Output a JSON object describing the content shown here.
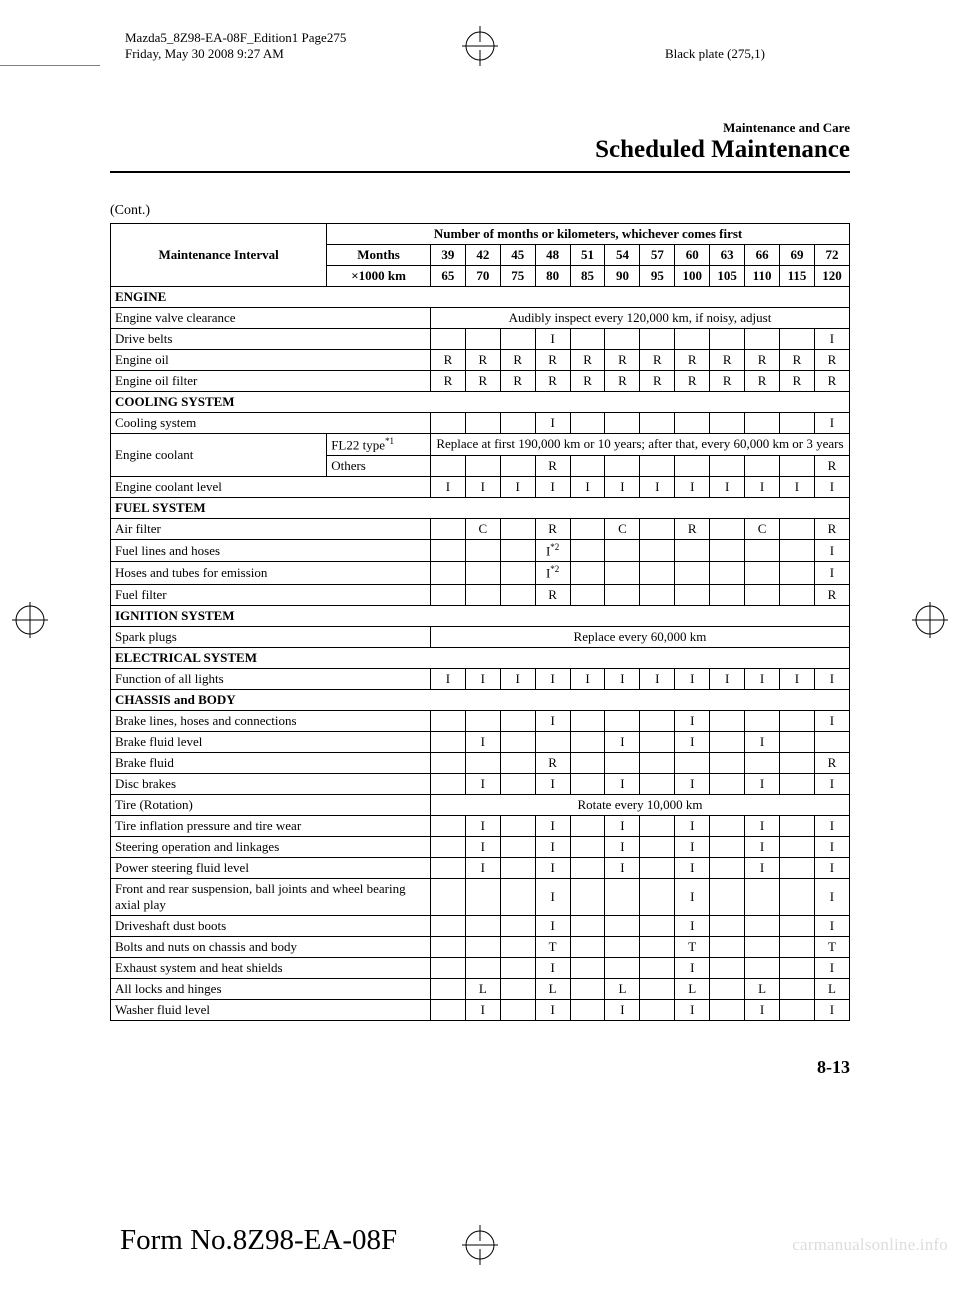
{
  "header": {
    "doc_line1": "Mazda5_8Z98-EA-08F_Edition1 Page275",
    "doc_line2": "Friday, May 30 2008 9:27 AM",
    "plate": "Black plate (275,1)"
  },
  "section": {
    "small": "Maintenance and Care",
    "large": "Scheduled Maintenance"
  },
  "cont": "(Cont.)",
  "table": {
    "header_title": "Number of months or kilometers, whichever comes first",
    "interval_label": "Maintenance Interval",
    "row_labels": {
      "months": "Months",
      "km": "×1000 km"
    },
    "months": [
      "39",
      "42",
      "45",
      "48",
      "51",
      "54",
      "57",
      "60",
      "63",
      "66",
      "69",
      "72"
    ],
    "km": [
      "65",
      "70",
      "75",
      "80",
      "85",
      "90",
      "95",
      "100",
      "105",
      "110",
      "115",
      "120"
    ],
    "sections": [
      {
        "title": "ENGINE",
        "rows": [
          {
            "label": "Engine valve clearance",
            "span_text": "Audibly inspect every 120,000 km, if noisy, adjust"
          },
          {
            "label": "Drive belts",
            "cells": [
              "",
              "",
              "",
              "I",
              "",
              "",
              "",
              "",
              "",
              "",
              "",
              "I"
            ]
          },
          {
            "label": "Engine oil",
            "cells": [
              "R",
              "R",
              "R",
              "R",
              "R",
              "R",
              "R",
              "R",
              "R",
              "R",
              "R",
              "R"
            ]
          },
          {
            "label": "Engine oil filter",
            "cells": [
              "R",
              "R",
              "R",
              "R",
              "R",
              "R",
              "R",
              "R",
              "R",
              "R",
              "R",
              "R"
            ]
          }
        ]
      },
      {
        "title": "COOLING SYSTEM",
        "rows": [
          {
            "label": "Cooling system",
            "cells": [
              "",
              "",
              "",
              "I",
              "",
              "",
              "",
              "",
              "",
              "",
              "",
              "I"
            ]
          },
          {
            "label": "Engine coolant",
            "sub": [
              {
                "sublabel": "FL22 type",
                "sup": "*1",
                "span_text": "Replace at first 190,000 km or 10 years; after that, every 60,000 km or 3 years"
              },
              {
                "sublabel": "Others",
                "cells": [
                  "",
                  "",
                  "",
                  "R",
                  "",
                  "",
                  "",
                  "",
                  "",
                  "",
                  "",
                  "R"
                ]
              }
            ]
          },
          {
            "label": "Engine coolant level",
            "cells": [
              "I",
              "I",
              "I",
              "I",
              "I",
              "I",
              "I",
              "I",
              "I",
              "I",
              "I",
              "I"
            ]
          }
        ]
      },
      {
        "title": "FUEL SYSTEM",
        "rows": [
          {
            "label": "Air filter",
            "cells": [
              "",
              "C",
              "",
              "R",
              "",
              "C",
              "",
              "R",
              "",
              "C",
              "",
              "R"
            ]
          },
          {
            "label": "Fuel lines and hoses",
            "cells": [
              "",
              "",
              "",
              "I*2",
              "",
              "",
              "",
              "",
              "",
              "",
              "",
              "I"
            ]
          },
          {
            "label": "Hoses and tubes for emission",
            "cells": [
              "",
              "",
              "",
              "I*2",
              "",
              "",
              "",
              "",
              "",
              "",
              "",
              "I"
            ]
          },
          {
            "label": "Fuel filter",
            "cells": [
              "",
              "",
              "",
              "R",
              "",
              "",
              "",
              "",
              "",
              "",
              "",
              "R"
            ]
          }
        ]
      },
      {
        "title": "IGNITION SYSTEM",
        "rows": [
          {
            "label": "Spark plugs",
            "span_text": "Replace every 60,000 km"
          }
        ]
      },
      {
        "title": "ELECTRICAL SYSTEM",
        "rows": [
          {
            "label": "Function of all lights",
            "cells": [
              "I",
              "I",
              "I",
              "I",
              "I",
              "I",
              "I",
              "I",
              "I",
              "I",
              "I",
              "I"
            ]
          }
        ]
      },
      {
        "title": "CHASSIS and BODY",
        "rows": [
          {
            "label": "Brake lines, hoses and connections",
            "cells": [
              "",
              "",
              "",
              "I",
              "",
              "",
              "",
              "I",
              "",
              "",
              "",
              "I"
            ]
          },
          {
            "label": "Brake fluid level",
            "cells": [
              "",
              "I",
              "",
              "",
              "",
              "I",
              "",
              "I",
              "",
              "I",
              "",
              ""
            ]
          },
          {
            "label": "Brake fluid",
            "cells": [
              "",
              "",
              "",
              "R",
              "",
              "",
              "",
              "",
              "",
              "",
              "",
              "R"
            ]
          },
          {
            "label": "Disc brakes",
            "cells": [
              "",
              "I",
              "",
              "I",
              "",
              "I",
              "",
              "I",
              "",
              "I",
              "",
              "I"
            ]
          },
          {
            "label": "Tire (Rotation)",
            "span_text": "Rotate every 10,000 km"
          },
          {
            "label": "Tire inflation pressure and tire wear",
            "cells": [
              "",
              "I",
              "",
              "I",
              "",
              "I",
              "",
              "I",
              "",
              "I",
              "",
              "I"
            ]
          },
          {
            "label": "Steering operation and linkages",
            "cells": [
              "",
              "I",
              "",
              "I",
              "",
              "I",
              "",
              "I",
              "",
              "I",
              "",
              "I"
            ]
          },
          {
            "label": "Power steering fluid level",
            "cells": [
              "",
              "I",
              "",
              "I",
              "",
              "I",
              "",
              "I",
              "",
              "I",
              "",
              "I"
            ]
          },
          {
            "label": "Front and rear suspension, ball joints and wheel bearing axial play",
            "cells": [
              "",
              "",
              "",
              "I",
              "",
              "",
              "",
              "I",
              "",
              "",
              "",
              "I"
            ]
          },
          {
            "label": "Driveshaft dust boots",
            "cells": [
              "",
              "",
              "",
              "I",
              "",
              "",
              "",
              "I",
              "",
              "",
              "",
              "I"
            ]
          },
          {
            "label": "Bolts and nuts on chassis and body",
            "cells": [
              "",
              "",
              "",
              "T",
              "",
              "",
              "",
              "T",
              "",
              "",
              "",
              "T"
            ]
          },
          {
            "label": "Exhaust system and heat shields",
            "cells": [
              "",
              "",
              "",
              "I",
              "",
              "",
              "",
              "I",
              "",
              "",
              "",
              "I"
            ]
          },
          {
            "label": "All locks and hinges",
            "cells": [
              "",
              "L",
              "",
              "L",
              "",
              "L",
              "",
              "L",
              "",
              "L",
              "",
              "L"
            ]
          },
          {
            "label": "Washer fluid level",
            "cells": [
              "",
              "I",
              "",
              "I",
              "",
              "I",
              "",
              "I",
              "",
              "I",
              "",
              "I"
            ]
          }
        ]
      }
    ]
  },
  "page_num": "8-13",
  "form_no": "Form No.8Z98-EA-08F",
  "watermark": "carmanualsonline.info"
}
